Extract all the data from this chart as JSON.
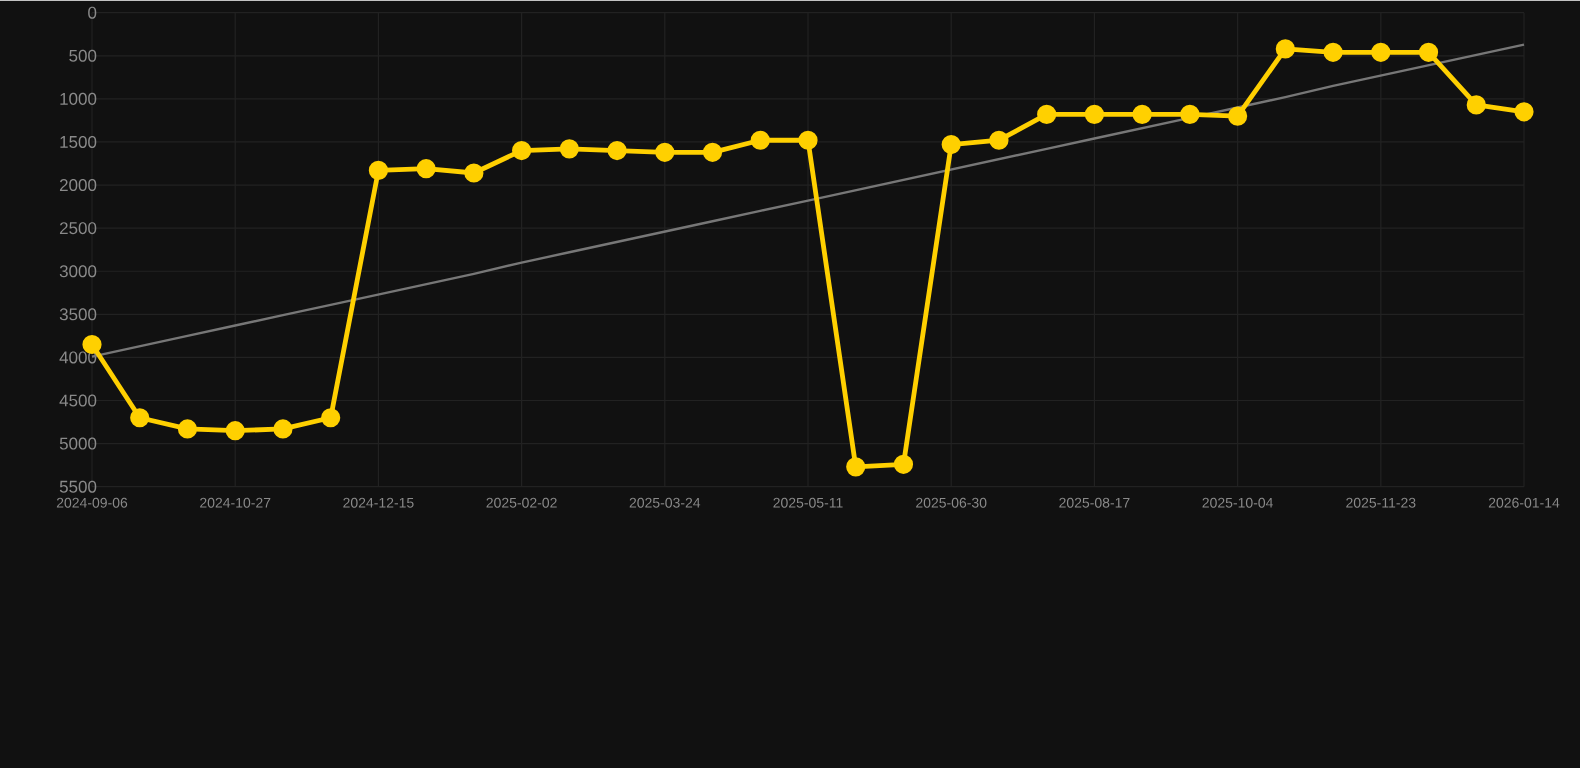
{
  "chart_data": {
    "type": "line",
    "categories": [
      "2024-09-06",
      null,
      null,
      "2024-10-27",
      null,
      null,
      "2024-12-15",
      null,
      null,
      "2025-02-02",
      null,
      null,
      "2025-03-24",
      null,
      null,
      "2025-05-11",
      null,
      null,
      "2025-06-30",
      null,
      null,
      "2025-08-17",
      null,
      null,
      "2025-10-04",
      null,
      null,
      "2025-11-23",
      null,
      null,
      "2026-01-14"
    ],
    "series": [
      {
        "color": "#ffd000",
        "marker": "circle",
        "values": [
          3850,
          4700,
          4830,
          4850,
          4830,
          4700,
          1830,
          1810,
          1860,
          1600,
          1580,
          1600,
          1620,
          1620,
          1480,
          1480,
          5270,
          5240,
          1530,
          1480,
          1180,
          1180,
          1180,
          1180,
          1200,
          420,
          460,
          460,
          460,
          1070,
          1150
        ]
      },
      {
        "type": "line",
        "color": "#777777",
        "marker": "none",
        "values": [
          3990,
          3870,
          3750,
          3630,
          3510,
          3390,
          3270,
          3150,
          3030,
          2900,
          2780,
          2660,
          2540,
          2420,
          2300,
          2180,
          2060,
          1940,
          1820,
          1700,
          1580,
          1460,
          1340,
          1220,
          1100,
          980,
          850,
          730,
          610,
          490,
          370
        ]
      }
    ],
    "ylim": [
      5500,
      0
    ],
    "yticks": [
      0,
      500,
      1000,
      1500,
      2000,
      2500,
      3000,
      3500,
      4000,
      4500,
      5000,
      5500
    ],
    "grid": true
  }
}
